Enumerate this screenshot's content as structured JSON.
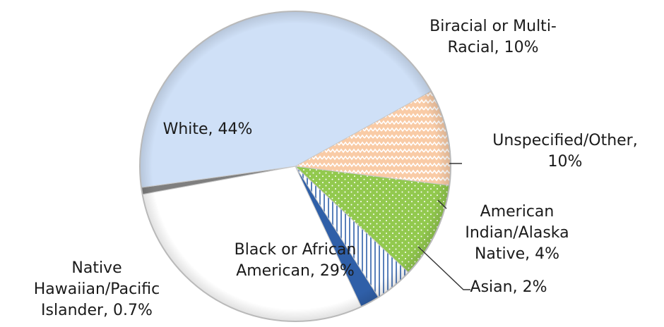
{
  "chart_data": {
    "type": "pie",
    "start_angle_deg": 61,
    "direction": "clockwise",
    "slices": [
      {
        "label": "Biracial or Multi-Racial",
        "value": 10,
        "display": "Biracial or Multi-\nRacial, 10%",
        "color": "#f9cba6",
        "pattern": "zigzag"
      },
      {
        "label": "Unspecified/Other",
        "value": 10,
        "display": "Unspecified/Other,\n10%",
        "color": "#92c94e",
        "pattern": "dots"
      },
      {
        "label": "American Indian/Alaska Native",
        "value": 4,
        "display": "American\nIndian/Alaska\nNative, 4%",
        "color": "#ffffff",
        "pattern": "vertical-lines"
      },
      {
        "label": "Asian",
        "value": 2,
        "display": "Asian, 2%",
        "color": "#2f5fa8",
        "pattern": "solid"
      },
      {
        "label": "Black or African American",
        "value": 29,
        "display": "Black or African\nAmerican, 29%",
        "color": "#ffffff",
        "pattern": "solid"
      },
      {
        "label": "Native Hawaiian/Pacific Islander",
        "value": 0.7,
        "display": "Native\nHawaiian/Pacific\nIslander, 0.7%",
        "color": "#7f7f7f",
        "pattern": "solid"
      },
      {
        "label": "White",
        "value": 44,
        "display": "White, 44%",
        "color": "#cfe0f7",
        "pattern": "solid"
      }
    ]
  }
}
